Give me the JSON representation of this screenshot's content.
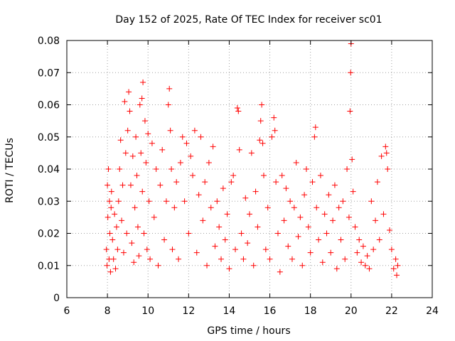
{
  "chart_data": {
    "type": "scatter",
    "title": "Day 152 of 2025, Rate Of TEC Index for receiver sc01",
    "xlabel": "GPS time / hours",
    "ylabel": "ROTI / TECUs",
    "xlim": [
      6,
      24
    ],
    "ylim": [
      0,
      0.08
    ],
    "x_ticks": [
      6,
      8,
      10,
      12,
      14,
      16,
      18,
      20,
      22,
      24
    ],
    "x_tick_labels": [
      "6",
      "8",
      "10",
      "12",
      "14",
      "16",
      "18",
      "20",
      "22",
      "24"
    ],
    "y_ticks": [
      0,
      0.01,
      0.02,
      0.03,
      0.04,
      0.05,
      0.06,
      0.07,
      0.08
    ],
    "y_tick_labels": [
      "0",
      "0.01",
      "0.02",
      "0.03",
      "0.04",
      "0.05",
      "0.06",
      "0.07",
      "0.08"
    ],
    "grid": true,
    "marker": "plus",
    "series_color": "#ff0000",
    "series": [
      {
        "name": "ROTI",
        "points": [
          [
            7.95,
            0.015
          ],
          [
            7.98,
            0.01
          ],
          [
            8.0,
            0.035
          ],
          [
            8.02,
            0.025
          ],
          [
            8.05,
            0.04
          ],
          [
            8.08,
            0.012
          ],
          [
            8.1,
            0.03
          ],
          [
            8.12,
            0.02
          ],
          [
            8.15,
            0.008
          ],
          [
            8.18,
            0.028
          ],
          [
            8.2,
            0.033
          ],
          [
            8.25,
            0.018
          ],
          [
            8.3,
            0.012
          ],
          [
            8.35,
            0.026
          ],
          [
            8.4,
            0.009
          ],
          [
            8.45,
            0.022
          ],
          [
            8.5,
            0.015
          ],
          [
            8.55,
            0.03
          ],
          [
            8.6,
            0.04
          ],
          [
            8.65,
            0.049
          ],
          [
            8.7,
            0.024
          ],
          [
            8.75,
            0.035
          ],
          [
            8.8,
            0.014
          ],
          [
            8.85,
            0.061
          ],
          [
            8.9,
            0.045
          ],
          [
            8.95,
            0.02
          ],
          [
            9.0,
            0.052
          ],
          [
            9.05,
            0.064
          ],
          [
            9.1,
            0.058
          ],
          [
            9.15,
            0.035
          ],
          [
            9.2,
            0.017
          ],
          [
            9.25,
            0.044
          ],
          [
            9.3,
            0.011
          ],
          [
            9.35,
            0.028
          ],
          [
            9.4,
            0.05
          ],
          [
            9.45,
            0.038
          ],
          [
            9.5,
            0.022
          ],
          [
            9.55,
            0.013
          ],
          [
            9.6,
            0.06
          ],
          [
            9.65,
            0.045
          ],
          [
            9.7,
            0.062
          ],
          [
            9.72,
            0.033
          ],
          [
            9.75,
            0.067
          ],
          [
            9.8,
            0.02
          ],
          [
            9.85,
            0.055
          ],
          [
            9.9,
            0.042
          ],
          [
            9.95,
            0.015
          ],
          [
            10.0,
            0.051
          ],
          [
            10.05,
            0.03
          ],
          [
            10.1,
            0.012
          ],
          [
            10.2,
            0.048
          ],
          [
            10.3,
            0.025
          ],
          [
            10.4,
            0.04
          ],
          [
            10.5,
            0.01
          ],
          [
            10.6,
            0.035
          ],
          [
            10.7,
            0.046
          ],
          [
            10.8,
            0.018
          ],
          [
            10.9,
            0.03
          ],
          [
            11.0,
            0.06
          ],
          [
            11.05,
            0.065
          ],
          [
            11.1,
            0.052
          ],
          [
            11.15,
            0.04
          ],
          [
            11.2,
            0.015
          ],
          [
            11.3,
            0.028
          ],
          [
            11.4,
            0.036
          ],
          [
            11.5,
            0.012
          ],
          [
            11.6,
            0.042
          ],
          [
            11.7,
            0.05
          ],
          [
            11.8,
            0.03
          ],
          [
            11.9,
            0.048
          ],
          [
            12.0,
            0.02
          ],
          [
            12.1,
            0.044
          ],
          [
            12.2,
            0.038
          ],
          [
            12.3,
            0.052
          ],
          [
            12.4,
            0.014
          ],
          [
            12.5,
            0.032
          ],
          [
            12.6,
            0.05
          ],
          [
            12.7,
            0.024
          ],
          [
            12.8,
            0.036
          ],
          [
            12.9,
            0.01
          ],
          [
            13.0,
            0.042
          ],
          [
            13.1,
            0.028
          ],
          [
            13.2,
            0.047
          ],
          [
            13.3,
            0.016
          ],
          [
            13.4,
            0.03
          ],
          [
            13.5,
            0.022
          ],
          [
            13.6,
            0.012
          ],
          [
            13.7,
            0.034
          ],
          [
            13.8,
            0.018
          ],
          [
            13.9,
            0.026
          ],
          [
            14.0,
            0.009
          ],
          [
            14.1,
            0.036
          ],
          [
            14.2,
            0.038
          ],
          [
            14.3,
            0.015
          ],
          [
            14.4,
            0.059
          ],
          [
            14.45,
            0.058
          ],
          [
            14.5,
            0.046
          ],
          [
            14.6,
            0.02
          ],
          [
            14.7,
            0.012
          ],
          [
            14.8,
            0.031
          ],
          [
            14.9,
            0.017
          ],
          [
            15.0,
            0.026
          ],
          [
            15.1,
            0.045
          ],
          [
            15.2,
            0.01
          ],
          [
            15.3,
            0.033
          ],
          [
            15.4,
            0.022
          ],
          [
            15.5,
            0.049
          ],
          [
            15.55,
            0.055
          ],
          [
            15.6,
            0.06
          ],
          [
            15.65,
            0.048
          ],
          [
            15.7,
            0.038
          ],
          [
            15.8,
            0.015
          ],
          [
            15.9,
            0.028
          ],
          [
            16.0,
            0.012
          ],
          [
            16.1,
            0.05
          ],
          [
            16.2,
            0.056
          ],
          [
            16.25,
            0.052
          ],
          [
            16.3,
            0.036
          ],
          [
            16.4,
            0.02
          ],
          [
            16.5,
            0.008
          ],
          [
            16.6,
            0.038
          ],
          [
            16.7,
            0.024
          ],
          [
            16.8,
            0.034
          ],
          [
            16.9,
            0.016
          ],
          [
            17.0,
            0.03
          ],
          [
            17.1,
            0.012
          ],
          [
            17.2,
            0.028
          ],
          [
            17.3,
            0.042
          ],
          [
            17.4,
            0.019
          ],
          [
            17.5,
            0.025
          ],
          [
            17.6,
            0.01
          ],
          [
            17.7,
            0.032
          ],
          [
            17.8,
            0.04
          ],
          [
            17.9,
            0.022
          ],
          [
            18.0,
            0.014
          ],
          [
            18.1,
            0.036
          ],
          [
            18.2,
            0.05
          ],
          [
            18.25,
            0.053
          ],
          [
            18.3,
            0.028
          ],
          [
            18.4,
            0.018
          ],
          [
            18.5,
            0.038
          ],
          [
            18.6,
            0.011
          ],
          [
            18.7,
            0.026
          ],
          [
            18.8,
            0.02
          ],
          [
            18.9,
            0.032
          ],
          [
            19.0,
            0.014
          ],
          [
            19.1,
            0.024
          ],
          [
            19.2,
            0.035
          ],
          [
            19.3,
            0.009
          ],
          [
            19.4,
            0.028
          ],
          [
            19.5,
            0.018
          ],
          [
            19.6,
            0.03
          ],
          [
            19.7,
            0.012
          ],
          [
            19.8,
            0.04
          ],
          [
            19.9,
            0.025
          ],
          [
            19.95,
            0.058
          ],
          [
            19.98,
            0.07
          ],
          [
            20.0,
            0.079
          ],
          [
            20.05,
            0.043
          ],
          [
            20.1,
            0.033
          ],
          [
            20.2,
            0.022
          ],
          [
            20.3,
            0.014
          ],
          [
            20.4,
            0.018
          ],
          [
            20.5,
            0.011
          ],
          [
            20.6,
            0.016
          ],
          [
            20.7,
            0.01
          ],
          [
            20.8,
            0.013
          ],
          [
            20.9,
            0.009
          ],
          [
            21.0,
            0.03
          ],
          [
            21.1,
            0.015
          ],
          [
            21.2,
            0.024
          ],
          [
            21.3,
            0.036
          ],
          [
            21.4,
            0.018
          ],
          [
            21.5,
            0.044
          ],
          [
            21.6,
            0.026
          ],
          [
            21.7,
            0.047
          ],
          [
            21.75,
            0.045
          ],
          [
            21.8,
            0.04
          ],
          [
            21.9,
            0.021
          ],
          [
            22.0,
            0.015
          ],
          [
            22.1,
            0.009
          ],
          [
            22.2,
            0.012
          ],
          [
            22.25,
            0.007
          ],
          [
            22.3,
            0.01
          ]
        ]
      }
    ]
  }
}
